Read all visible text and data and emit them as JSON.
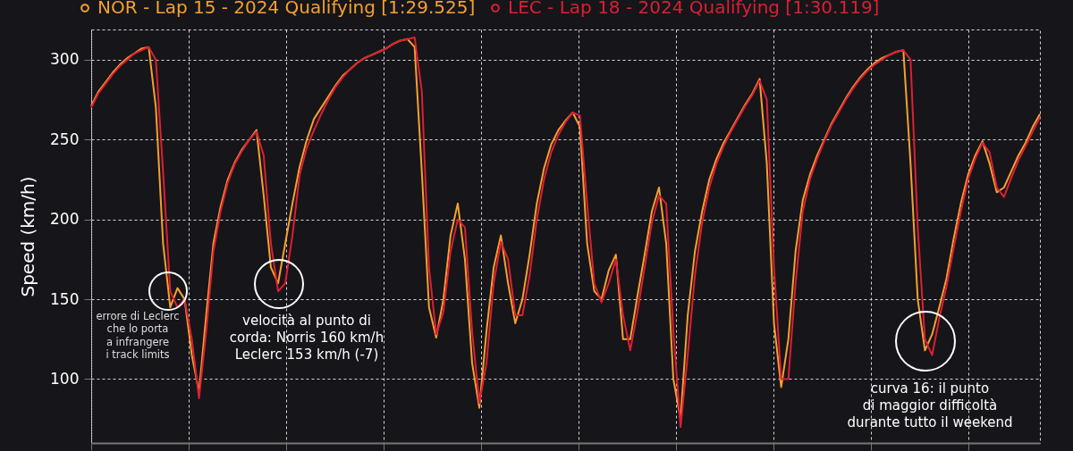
{
  "chart_data": {
    "type": "line",
    "ylabel": "Speed (km/h)",
    "ylim": [
      60,
      319
    ],
    "yticks": [
      100,
      150,
      200,
      250,
      300
    ],
    "grid": true,
    "legend": "top",
    "tick_labels": "y",
    "categories": [
      null,
      null,
      null,
      null,
      null,
      null,
      null,
      null,
      null,
      null,
      null,
      null,
      null,
      null,
      null,
      null,
      null,
      null,
      null,
      null,
      null,
      null,
      null,
      null,
      null,
      null,
      null,
      null,
      null,
      null,
      null,
      null,
      null,
      null,
      null,
      null,
      null,
      null,
      null,
      null,
      null,
      null,
      null,
      null,
      null,
      null,
      null,
      null,
      null,
      null,
      null,
      null,
      null,
      null,
      null,
      null,
      null,
      null,
      null,
      null,
      null,
      null,
      null,
      null,
      null,
      null,
      null,
      null,
      null,
      null,
      null,
      null,
      null,
      null,
      null,
      null,
      null,
      null,
      null,
      null,
      null,
      null,
      null,
      null,
      null,
      null,
      null,
      null,
      null,
      null,
      null,
      null,
      null,
      null,
      null,
      null,
      null,
      null,
      null,
      null,
      null,
      null,
      null,
      null,
      null,
      null,
      null,
      null,
      null,
      null,
      null,
      null,
      null,
      null,
      null,
      null,
      null,
      null,
      null,
      null,
      null,
      null,
      null,
      null,
      null,
      null,
      null,
      null,
      null,
      null,
      null,
      null,
      null
    ],
    "series": [
      {
        "name": "NOR - Lap 15 - 2024 Qualifying [1:29.525]",
        "color": "#f5a12e",
        "values": [
          271,
          280,
          286,
          292,
          297,
          301,
          304,
          307,
          308,
          270,
          185,
          145,
          157,
          150,
          115,
          92,
          140,
          185,
          208,
          225,
          236,
          244,
          250,
          256,
          215,
          170,
          160,
          185,
          210,
          233,
          250,
          263,
          270,
          277,
          284,
          290,
          294,
          298,
          301,
          303,
          305,
          307,
          310,
          312,
          313,
          308,
          230,
          145,
          126,
          150,
          190,
          210,
          175,
          110,
          82,
          130,
          170,
          190,
          160,
          135,
          150,
          178,
          210,
          232,
          247,
          256,
          262,
          267,
          258,
          185,
          155,
          150,
          168,
          178,
          125,
          125,
          152,
          178,
          205,
          220,
          185,
          100,
          75,
          140,
          180,
          205,
          225,
          238,
          248,
          256,
          264,
          272,
          279,
          288,
          235,
          135,
          95,
          125,
          180,
          212,
          228,
          240,
          250,
          260,
          268,
          276,
          283,
          289,
          294,
          298,
          301,
          303,
          305,
          306,
          235,
          150,
          118,
          128,
          145,
          163,
          188,
          210,
          228,
          240,
          249,
          235,
          217,
          220,
          230,
          240,
          248,
          258,
          266
        ]
      },
      {
        "name": "LEC - Lap 18 - 2024 Qualifying [1:30.119]",
        "color": "#dc1f34",
        "values": [
          270,
          279,
          285,
          291,
          296,
          300,
          304,
          306,
          308,
          300,
          230,
          155,
          145,
          150,
          125,
          88,
          130,
          180,
          205,
          223,
          235,
          243,
          250,
          255,
          240,
          185,
          155,
          160,
          190,
          228,
          245,
          256,
          266,
          275,
          283,
          289,
          294,
          298,
          301,
          303,
          305,
          307,
          310,
          312,
          313,
          314,
          280,
          170,
          128,
          142,
          180,
          200,
          195,
          130,
          85,
          110,
          160,
          186,
          175,
          140,
          140,
          165,
          200,
          225,
          242,
          253,
          261,
          267,
          265,
          210,
          160,
          148,
          160,
          175,
          140,
          118,
          142,
          170,
          198,
          215,
          210,
          130,
          70,
          115,
          165,
          198,
          220,
          235,
          246,
          255,
          263,
          271,
          278,
          287,
          275,
          170,
          100,
          100,
          160,
          205,
          225,
          238,
          249,
          259,
          267,
          275,
          282,
          288,
          293,
          297,
          300,
          303,
          305,
          306,
          300,
          195,
          125,
          115,
          138,
          158,
          182,
          205,
          225,
          238,
          248,
          242,
          220,
          214,
          226,
          237,
          246,
          255,
          264
        ]
      }
    ],
    "annotations": [
      "errore di Leclerc che lo porta a infrangere i track limits",
      "velocità al punto di corda: Norris 160 km/h Leclerc 153 km/h (-7)",
      "curva 16: il punto di maggior difficoltà durante tutto il weekend"
    ]
  }
}
